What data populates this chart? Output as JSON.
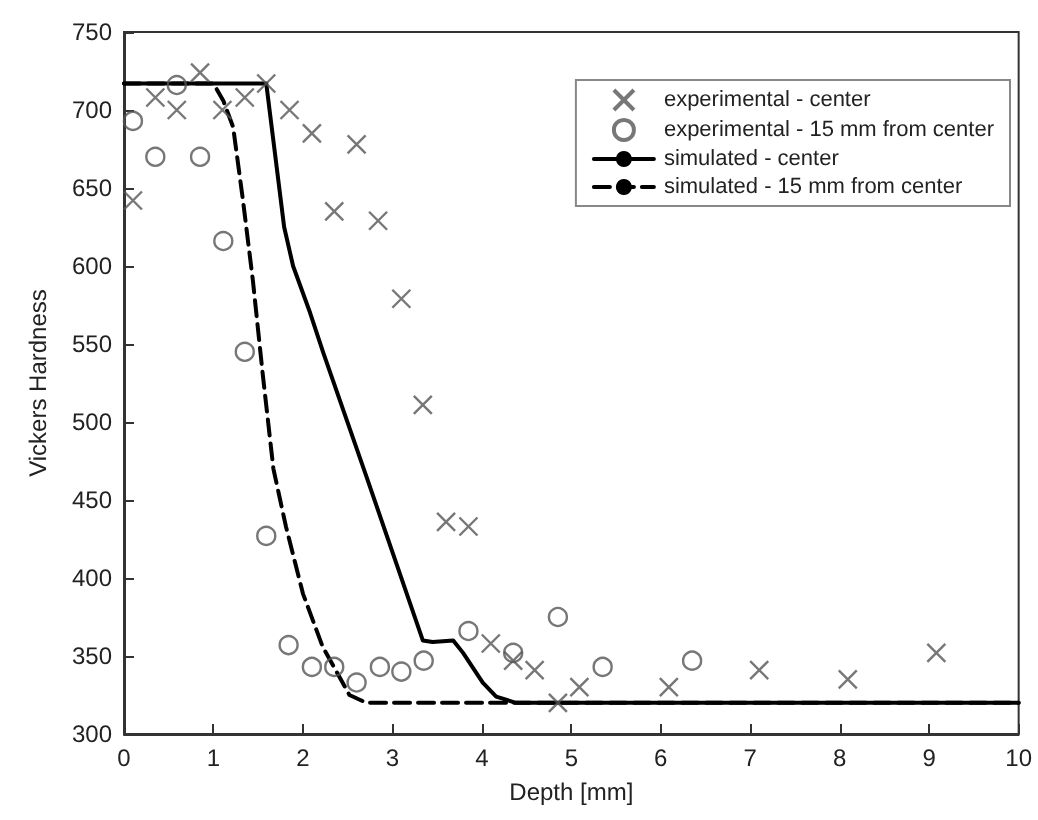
{
  "chart_data": {
    "type": "scatter",
    "xlabel": "Depth [mm]",
    "ylabel": "Vickers Hardness",
    "xlim": [
      0,
      10
    ],
    "ylim": [
      300,
      750
    ],
    "xticks": [
      0,
      1,
      2,
      3,
      4,
      5,
      6,
      7,
      8,
      9,
      10
    ],
    "yticks": [
      300,
      350,
      400,
      450,
      500,
      550,
      600,
      650,
      700,
      750
    ],
    "legend": "top right",
    "grid": false,
    "series": [
      {
        "name": "experimental - center",
        "marker": "cross",
        "color": "#555555",
        "x": [
          0.1,
          0.35,
          0.59,
          0.85,
          1.1,
          1.35,
          1.59,
          1.85,
          2.1,
          2.35,
          2.6,
          2.84,
          3.1,
          3.34,
          3.6,
          3.85,
          4.1,
          4.35,
          4.59,
          4.85,
          5.09,
          6.09,
          7.1,
          8.09,
          9.08
        ],
        "values": [
          642,
          708,
          700,
          724,
          700,
          708,
          717,
          700,
          685,
          635,
          678,
          629,
          579,
          511,
          436,
          433,
          358,
          347,
          341,
          320,
          330,
          330,
          341,
          335,
          352
        ]
      },
      {
        "name": "experimental - 15 mm from center",
        "marker": "circle",
        "color": "#555555",
        "x": [
          0.1,
          0.35,
          0.59,
          0.85,
          1.11,
          1.35,
          1.59,
          1.84,
          2.1,
          2.35,
          2.6,
          2.86,
          3.1,
          3.35,
          3.85,
          4.35,
          4.85,
          5.35,
          6.35
        ],
        "values": [
          693,
          670,
          716,
          670,
          616,
          545,
          427,
          357,
          343,
          343,
          333,
          343,
          340,
          347,
          366,
          352,
          375,
          343,
          347
        ]
      },
      {
        "name": "simulated - center",
        "type": "line",
        "line_style": "solid",
        "marker": "none",
        "color": "#000000",
        "x": [
          0,
          1.59,
          1.79,
          1.89,
          2.08,
          2.23,
          2.71,
          3.34,
          3.45,
          3.68,
          3.79,
          4.01,
          4.16,
          4.38,
          10
        ],
        "values": [
          717,
          717,
          625,
          600,
          570,
          544,
          465,
          360,
          359,
          360,
          352,
          333,
          324,
          320,
          320
        ]
      },
      {
        "name": "simulated - 15 mm from center",
        "type": "line",
        "line_style": "dashed",
        "marker": "none",
        "color": "#000000",
        "x": [
          0,
          1.0,
          1.11,
          1.22,
          1.33,
          1.44,
          1.55,
          1.67,
          1.81,
          2.0,
          2.22,
          2.52,
          2.71,
          10
        ],
        "values": [
          717,
          717,
          706,
          689,
          642,
          591,
          531,
          470,
          433,
          390,
          356,
          325,
          320,
          320
        ]
      }
    ]
  }
}
